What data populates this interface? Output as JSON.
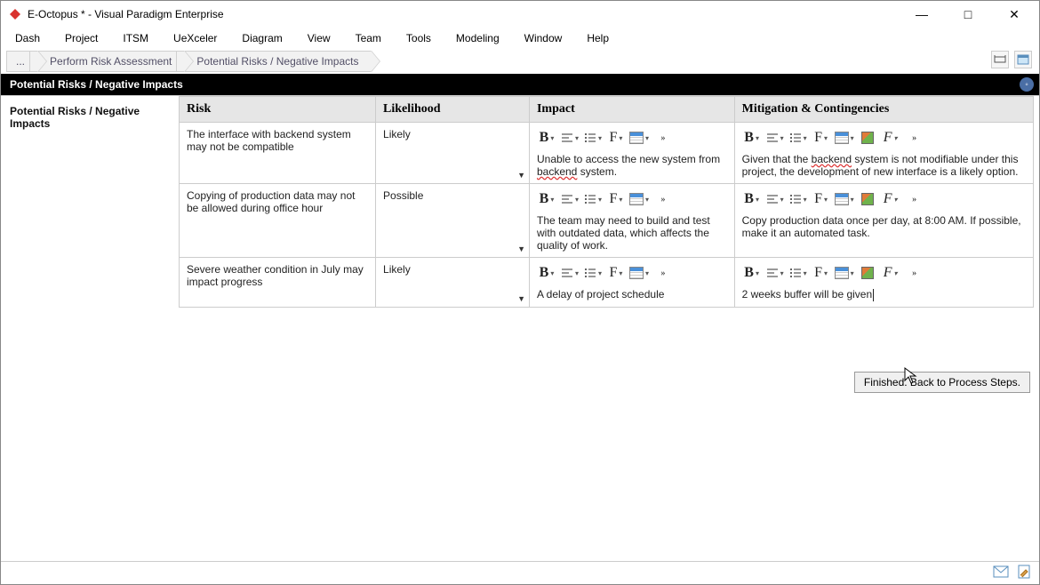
{
  "window": {
    "title": "E-Octopus * - Visual Paradigm Enterprise"
  },
  "menu": {
    "items": [
      "Dash",
      "Project",
      "ITSM",
      "UeXceler",
      "Diagram",
      "View",
      "Team",
      "Tools",
      "Modeling",
      "Window",
      "Help"
    ]
  },
  "breadcrumb": {
    "items": [
      "...",
      "Perform Risk Assessment",
      "Potential Risks / Negative Impacts"
    ]
  },
  "section": {
    "title": "Potential Risks / Negative Impacts",
    "side_label": "Potential Risks / Negative Impacts"
  },
  "table": {
    "columns": [
      "Risk",
      "Likelihood",
      "Impact",
      "Mitigation & Contingencies"
    ],
    "rows": [
      {
        "risk": "The interface with backend system may not be compatible",
        "likelihood": "Likely",
        "impact_pre": "Unable to access the new system from ",
        "impact_wave": "backend",
        "impact_post": " system.",
        "mitigation_pre": "Given that the ",
        "mitigation_wave": "backend",
        "mitigation_post": " system is not modifiable under this project, the development of new interface is a likely option."
      },
      {
        "risk": "Copying of production data may not be allowed during office hour",
        "likelihood": "Possible",
        "impact": "The team may need to build and test with outdated data, which affects the quality of work.",
        "mitigation": "Copy production data once per day, at 8:00 AM. If possible, make it an automated task."
      },
      {
        "risk": "Severe weather condition in July may impact progress",
        "likelihood": "Likely",
        "impact": "A delay of project schedule",
        "mitigation": "2 weeks buffer will be given"
      }
    ]
  },
  "finish_button": "Finished. Back to Process Steps.",
  "colors": {
    "header_bg": "#e6e6e6",
    "section_bg": "#000000",
    "section_fg": "#ffffff",
    "border": "#cccccc",
    "crumb_bg": "#f2f2f2",
    "spell_wave": "#d33333"
  }
}
